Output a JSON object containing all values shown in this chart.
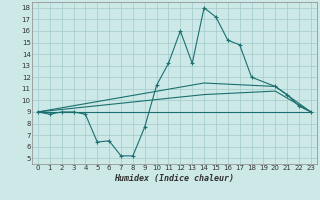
{
  "xlabel": "Humidex (Indice chaleur)",
  "bg_color": "#cce8e7",
  "grid_color": "#aacfce",
  "line_color": "#1a7070",
  "xlim": [
    -0.5,
    23.5
  ],
  "ylim": [
    4.5,
    18.5
  ],
  "yticks": [
    5,
    6,
    7,
    8,
    9,
    10,
    11,
    12,
    13,
    14,
    15,
    16,
    17,
    18
  ],
  "xticks": [
    0,
    1,
    2,
    3,
    4,
    5,
    6,
    7,
    8,
    9,
    10,
    11,
    12,
    13,
    14,
    15,
    16,
    17,
    18,
    19,
    20,
    21,
    22,
    23
  ],
  "curve1_x": [
    0,
    1,
    2,
    3,
    4,
    5,
    6,
    7,
    8,
    9,
    10,
    11,
    12,
    13,
    14,
    15,
    16,
    17,
    18,
    20,
    21,
    22,
    23
  ],
  "curve1_y": [
    9.0,
    8.8,
    9.0,
    9.0,
    8.8,
    6.4,
    6.5,
    5.2,
    5.2,
    7.7,
    11.3,
    13.2,
    16.0,
    13.2,
    18.0,
    17.2,
    15.2,
    14.8,
    12.0,
    11.2,
    10.5,
    9.5,
    9.0
  ],
  "curve2_x": [
    0,
    14,
    20,
    23
  ],
  "curve2_y": [
    9.0,
    11.5,
    11.2,
    9.0
  ],
  "curve3_x": [
    0,
    14,
    20,
    23
  ],
  "curve3_y": [
    9.0,
    10.5,
    10.8,
    9.0
  ],
  "curve4_x": [
    0,
    23
  ],
  "curve4_y": [
    9.0,
    9.0
  ]
}
